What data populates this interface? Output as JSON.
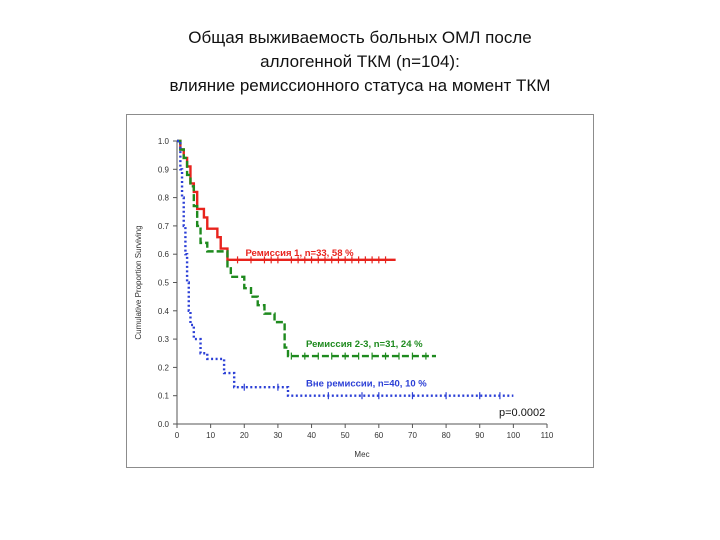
{
  "title_lines": [
    "Общая выживаемость больных ОМЛ после",
    "аллогенной ТКМ (n=104):",
    "влияние ремиссионного статуса на момент ТКМ"
  ],
  "chart_data": {
    "type": "line",
    "subtype": "kaplan-meier",
    "xlabel": "Мес",
    "ylabel": "Cumulative Proportion Surviving",
    "xlim": [
      0,
      110
    ],
    "ylim": [
      0,
      1
    ],
    "xticks": [
      "0",
      "10",
      "20",
      "30",
      "40",
      "50",
      "60",
      "70",
      "80",
      "90",
      "100",
      "110"
    ],
    "yticks": [
      "0.0",
      "0.1",
      "0.2",
      "0.3",
      "0.4",
      "0.5",
      "0.6",
      "0.7",
      "0.8",
      "0.9",
      "1.0"
    ],
    "grid": false,
    "annotation": "p=0.0002",
    "series": [
      {
        "name": "Ремиссия 1, n=33, 58 %",
        "color": "#e8231d",
        "dash": "solid",
        "steps": [
          [
            0,
            1.0
          ],
          [
            1,
            0.97
          ],
          [
            2,
            0.94
          ],
          [
            3,
            0.91
          ],
          [
            4,
            0.85
          ],
          [
            5,
            0.82
          ],
          [
            6,
            0.76
          ],
          [
            8,
            0.73
          ],
          [
            9,
            0.69
          ],
          [
            12,
            0.66
          ],
          [
            13,
            0.62
          ],
          [
            15,
            0.58
          ],
          [
            65,
            0.58
          ]
        ],
        "censored": [
          18,
          22,
          26,
          28,
          30,
          34,
          36,
          38,
          40,
          42,
          44,
          46,
          48,
          50,
          52,
          54,
          56,
          58,
          60,
          62
        ]
      },
      {
        "name": "Ремиссия 2-3, n=31, 24 %",
        "color": "#1e8a1e",
        "dash": "dashed",
        "steps": [
          [
            0,
            1.0
          ],
          [
            1,
            0.97
          ],
          [
            2,
            0.94
          ],
          [
            3,
            0.88
          ],
          [
            4,
            0.84
          ],
          [
            5,
            0.77
          ],
          [
            6,
            0.7
          ],
          [
            7,
            0.64
          ],
          [
            9,
            0.61
          ],
          [
            15,
            0.55
          ],
          [
            16,
            0.52
          ],
          [
            20,
            0.48
          ],
          [
            22,
            0.45
          ],
          [
            24,
            0.42
          ],
          [
            26,
            0.39
          ],
          [
            29,
            0.36
          ],
          [
            32,
            0.27
          ],
          [
            33,
            0.24
          ],
          [
            77,
            0.24
          ]
        ],
        "censored": [
          34,
          38,
          42,
          46,
          50,
          54,
          58,
          62,
          66,
          70,
          74
        ]
      },
      {
        "name": "Вне ремиссии, n=40, 10 %",
        "color": "#2b3fd6",
        "dash": "dotted",
        "steps": [
          [
            0,
            1.0
          ],
          [
            1,
            0.9
          ],
          [
            1.5,
            0.8
          ],
          [
            2,
            0.7
          ],
          [
            2.5,
            0.6
          ],
          [
            3,
            0.5
          ],
          [
            3.5,
            0.4
          ],
          [
            4,
            0.35
          ],
          [
            5,
            0.3
          ],
          [
            7,
            0.25
          ],
          [
            9,
            0.23
          ],
          [
            14,
            0.18
          ],
          [
            17,
            0.13
          ],
          [
            33,
            0.1
          ],
          [
            100,
            0.1
          ]
        ],
        "censored": [
          20,
          30,
          45,
          55,
          60,
          70,
          80,
          90,
          96
        ]
      }
    ]
  }
}
